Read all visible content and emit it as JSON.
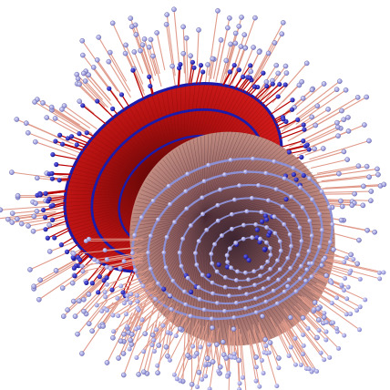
{
  "image": {
    "description_name": "3d-radial-spiral-network-render",
    "background_color": "#ffffff"
  },
  "palette": {
    "red_fill": "#c81414",
    "dark_red_fill": "#6e0a0a",
    "red_spoke": "#b80000",
    "blue_node": "#1a18b0",
    "blue_ring": "#1c1aa8",
    "pink_fill": "#c98c80",
    "pink_spoke": "#e09a8a",
    "lavender_node": "#9c9ce6",
    "lavender_ring": "#8e90d4",
    "dark_cone": "#4a3040"
  }
}
